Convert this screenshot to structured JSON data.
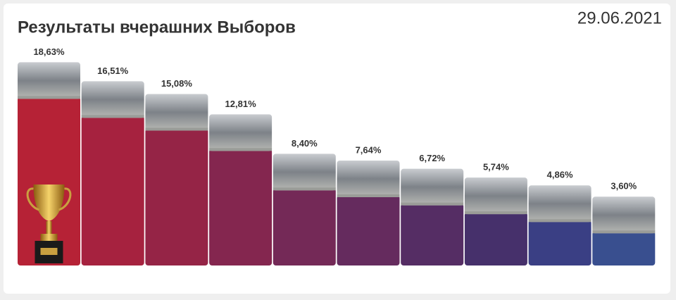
{
  "chart_data": {
    "type": "bar",
    "title": "Результаты вчерашних Выборов",
    "date": "29.06.2021",
    "values": [
      18.63,
      16.51,
      15.08,
      12.81,
      8.4,
      7.64,
      6.72,
      5.74,
      4.86,
      3.6
    ],
    "value_labels": [
      "18,63%",
      "16,51%",
      "15,08%",
      "12,81%",
      "8,40%",
      "7,64%",
      "6,72%",
      "5,74%",
      "4,86%",
      "3,60%"
    ],
    "colors": [
      "#b62236",
      "#a6223f",
      "#952446",
      "#84264f",
      "#742957",
      "#652b5e",
      "#552d64",
      "#46306b",
      "#3a3f84",
      "#394f8f"
    ],
    "ylim": [
      0,
      20
    ]
  }
}
